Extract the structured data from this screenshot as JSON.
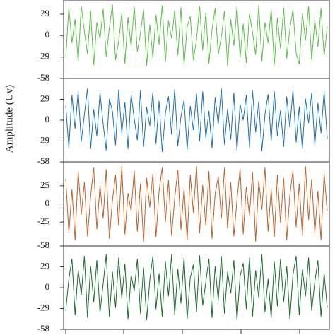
{
  "chart_data": [
    {
      "type": "line",
      "ylim": [
        -58,
        48
      ],
      "yticks": [
        -58,
        -29,
        0,
        29
      ],
      "series": [
        {
          "color": "#5cbf4a",
          "values": [
            -30,
            38,
            -10,
            22,
            -35,
            40,
            5,
            -25,
            33,
            -40,
            18,
            -5,
            36,
            -28,
            10,
            42,
            -33,
            -8,
            30,
            -38,
            25,
            -15,
            39,
            -22,
            3,
            35,
            -41,
            15,
            -30,
            28,
            -12,
            41,
            -36,
            20,
            -4,
            34,
            -27,
            38,
            -40,
            12,
            26,
            -33,
            -6,
            40,
            -20,
            31,
            -38,
            8,
            37,
            -25,
            -2,
            33,
            -41,
            22,
            -14,
            39,
            -30,
            16,
            -37,
            29,
            4,
            -26,
            41,
            -35,
            18,
            -10,
            36,
            -40,
            24,
            -18,
            38,
            -31,
            9,
            35,
            -24,
            -39,
            30,
            -7,
            40,
            -33,
            21,
            -15,
            37,
            -28,
            12
          ]
        }
      ]
    },
    {
      "type": "line",
      "ylim": [
        -58,
        58
      ],
      "yticks": [
        -58,
        -29,
        0,
        29
      ],
      "ylabel": "Amplitude (Uv)",
      "series": [
        {
          "color": "#1f6fb5",
          "values": [
            20,
            -38,
            35,
            -12,
            40,
            -30,
            8,
            44,
            -40,
            15,
            -22,
            38,
            -5,
            -42,
            30,
            12,
            -35,
            42,
            -18,
            25,
            -40,
            36,
            2,
            -28,
            41,
            -37,
            18,
            -8,
            39,
            -33,
            27,
            -44,
            10,
            33,
            -20,
            43,
            -36,
            5,
            28,
            -41,
            20,
            -14,
            37,
            -30,
            40,
            -25,
            13,
            -39,
            32,
            -6,
            44,
            -34,
            16,
            -27,
            38,
            -42,
            22,
            0,
            35,
            -38,
            41,
            -17,
            26,
            -43,
            8,
            36,
            -29,
            40,
            -22,
            14,
            -37,
            33,
            -10,
            42,
            -31,
            19,
            -40,
            30,
            -4,
            38,
            -35,
            24,
            -18,
            40,
            -26
          ]
        }
      ]
    },
    {
      "type": "line",
      "ylim": [
        -58,
        58
      ],
      "yticks": [
        -58,
        -25,
        0,
        25
      ],
      "series": [
        {
          "color": "#c0622a",
          "values": [
            35,
            -40,
            20,
            -50,
            45,
            -15,
            30,
            -45,
            10,
            50,
            -35,
            25,
            -20,
            48,
            -48,
            5,
            40,
            -30,
            52,
            -42,
            15,
            -10,
            46,
            -38,
            28,
            -52,
            36,
            -5,
            42,
            -46,
            18,
            50,
            -25,
            33,
            -44,
            8,
            47,
            -36,
            22,
            -50,
            40,
            -12,
            52,
            -40,
            26,
            -30,
            45,
            -48,
            14,
            38,
            -20,
            50,
            -34,
            30,
            -45,
            6,
            48,
            -42,
            24,
            -16,
            44,
            -52,
            32,
            -8,
            50,
            -38,
            20,
            -46,
            40,
            -26,
            36,
            -50,
            12,
            46,
            -32,
            28,
            -44,
            52,
            -22,
            34,
            -40,
            18,
            -50,
            42,
            -10
          ]
        }
      ]
    },
    {
      "type": "line",
      "ylim": [
        -58,
        58
      ],
      "yticks": [
        -58,
        -29,
        0,
        29
      ],
      "series": [
        {
          "color": "#1a6b2a",
          "values": [
            -32,
            12,
            40,
            -38,
            25,
            -10,
            44,
            -42,
            30,
            -20,
            38,
            -35,
            5,
            46,
            -40,
            22,
            -28,
            42,
            -15,
            33,
            -44,
            18,
            -5,
            40,
            -36,
            28,
            -45,
            10,
            44,
            -30,
            20,
            -40,
            36,
            -12,
            46,
            -38,
            26,
            -22,
            42,
            -44,
            14,
            32,
            -34,
            45,
            -25,
            8,
            40,
            -42,
            30,
            -18,
            44,
            -36,
            22,
            -8,
            38,
            -45,
            16,
            34,
            -30,
            42,
            -40,
            24,
            -14,
            46,
            -34,
            12,
            -42,
            36,
            -26,
            40,
            -20,
            30,
            -44,
            18,
            44,
            -38,
            26,
            -12,
            42,
            -32,
            8,
            38,
            -40,
            20,
            -28
          ]
        }
      ]
    }
  ]
}
